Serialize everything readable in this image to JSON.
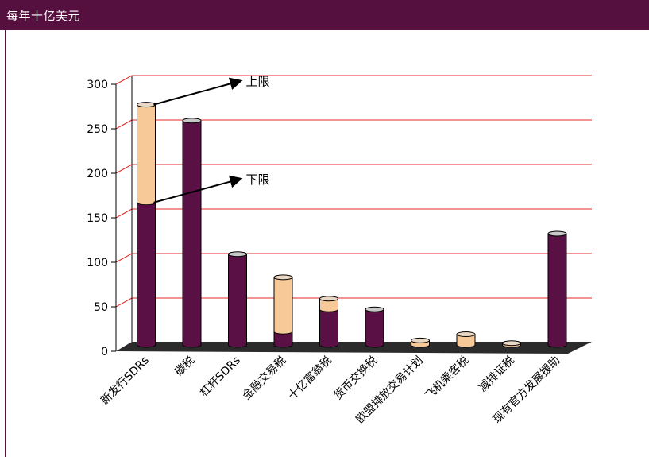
{
  "header": {
    "title": "每年十亿美元"
  },
  "colors": {
    "header_bg": "#56103f",
    "bar_dark": "#5a0f45",
    "bar_light": "#f7c898",
    "grid": "#e62828",
    "floor": "#2b2b2b"
  },
  "chart_data": {
    "type": "bar",
    "stacked": true,
    "three_d": true,
    "title": "",
    "xlabel": "",
    "ylabel": "",
    "ylim": [
      0,
      300
    ],
    "yticks": [
      0,
      50,
      100,
      150,
      200,
      250,
      300
    ],
    "grid": true,
    "categories": [
      "新发行SDRs",
      "碳税",
      "杠杆SDRs",
      "金融交易税",
      "十亿富翁税",
      "货币交换税",
      "欧盟排放交易计划",
      "飞机乘客税",
      "减排证税",
      "现有官方发展援助"
    ],
    "series": [
      {
        "values": [
          160,
          252,
          102,
          15,
          40,
          40,
          0,
          0,
          0,
          125
        ]
      },
      {
        "values": [
          110,
          0,
          0,
          61,
          12,
          0,
          5,
          12,
          2,
          0
        ]
      }
    ],
    "annotations": [
      {
        "text": "上限",
        "category": "新发行SDRs",
        "value": 270
      },
      {
        "text": "下限",
        "category": "新发行SDRs",
        "value": 160
      }
    ]
  }
}
